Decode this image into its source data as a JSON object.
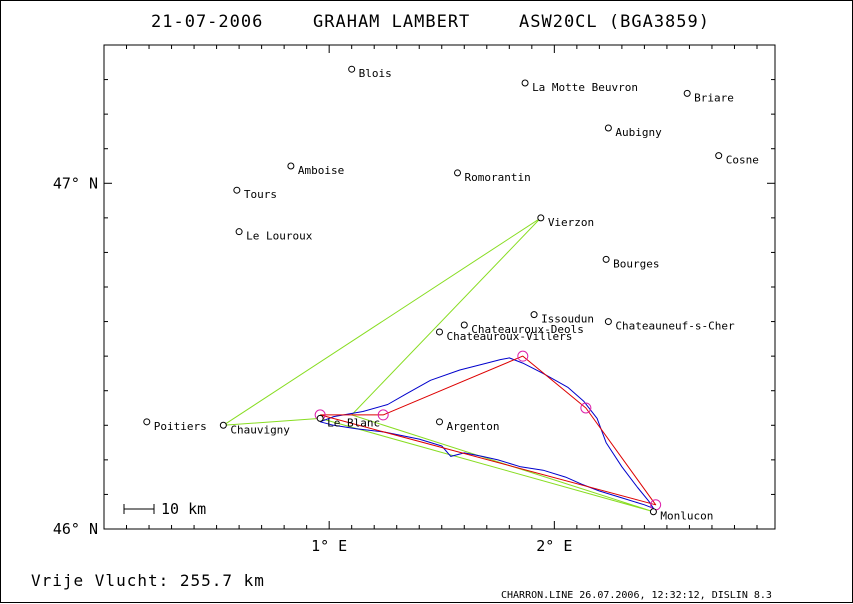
{
  "title": {
    "date": "21-07-2006",
    "pilot": "GRAHAM LAMBERT",
    "glider": "ASW20CL (BGA3859)"
  },
  "axes": {
    "x_ticks": [
      {
        "label": "1° E",
        "value": 1
      },
      {
        "label": "2° E",
        "value": 2
      }
    ],
    "y_ticks": [
      {
        "label": "47° N",
        "value": 47
      },
      {
        "label": "46° N",
        "value": 46
      }
    ],
    "lon_range": [
      0.0,
      2.98
    ],
    "lat_range": [
      46.0,
      47.4
    ]
  },
  "scale_bar": {
    "label": "10 km"
  },
  "towns": [
    {
      "name": "Blois",
      "lon": 1.1,
      "lat": 47.33
    },
    {
      "name": "La Motte Beuvron",
      "lon": 1.87,
      "lat": 47.29
    },
    {
      "name": "Briare",
      "lon": 2.59,
      "lat": 47.26
    },
    {
      "name": "Aubigny",
      "lon": 2.24,
      "lat": 47.16
    },
    {
      "name": "Cosne",
      "lon": 2.73,
      "lat": 47.08
    },
    {
      "name": "Amboise",
      "lon": 0.83,
      "lat": 47.05
    },
    {
      "name": "Romorantin",
      "lon": 1.57,
      "lat": 47.03
    },
    {
      "name": "Tours",
      "lon": 0.59,
      "lat": 46.98
    },
    {
      "name": "Vierzon",
      "lon": 1.94,
      "lat": 46.9
    },
    {
      "name": "Le Louroux",
      "lon": 0.6,
      "lat": 46.86
    },
    {
      "name": "Bourges",
      "lon": 2.23,
      "lat": 46.78
    },
    {
      "name": "Issoudun",
      "lon": 1.91,
      "lat": 46.62
    },
    {
      "name": "Chateauneuf-s-Cher",
      "lon": 2.24,
      "lat": 46.6
    },
    {
      "name": "Chateauroux-Deols",
      "lon": 1.6,
      "lat": 46.59
    },
    {
      "name": "Chateauroux-Villers",
      "lon": 1.49,
      "lat": 46.57
    },
    {
      "name": "Poitiers",
      "lon": 0.19,
      "lat": 46.31
    },
    {
      "name": "Chauvigny",
      "lon": 0.53,
      "lat": 46.3
    },
    {
      "name": "Le Blanc",
      "lon": 0.96,
      "lat": 46.32
    },
    {
      "name": "Argenton",
      "lon": 1.49,
      "lat": 46.31
    },
    {
      "name": "Monlucon",
      "lon": 2.44,
      "lat": 46.05
    }
  ],
  "footer": {
    "distance": "Vrije Vlucht:  255.7 km",
    "credit": "CHARRON.LINE 26.07.2006, 12:32:12, DISLIN 8.3"
  },
  "colors": {
    "task_line": "#88dd22",
    "flight_track": "#0000cc",
    "free_flight": "#dd0000",
    "turnpoints": "#dd22aa"
  },
  "task_route": [
    [
      1.94,
      46.9
    ],
    [
      0.53,
      46.3
    ],
    [
      0.96,
      46.32
    ],
    [
      2.44,
      46.05
    ],
    [
      1.1,
      46.33
    ],
    [
      1.94,
      46.9
    ]
  ],
  "free_flight_route": [
    [
      0.96,
      46.33
    ],
    [
      1.24,
      46.33
    ],
    [
      1.86,
      46.5
    ],
    [
      2.14,
      46.35
    ],
    [
      2.45,
      46.07
    ],
    [
      0.96,
      46.33
    ]
  ],
  "turnpoints": [
    [
      0.96,
      46.33
    ],
    [
      1.24,
      46.33
    ],
    [
      1.86,
      46.5
    ],
    [
      2.14,
      46.35
    ],
    [
      2.45,
      46.07
    ]
  ],
  "flight_track": [
    [
      0.96,
      46.31
    ],
    [
      1.02,
      46.325
    ],
    [
      1.15,
      46.34
    ],
    [
      1.26,
      46.36
    ],
    [
      1.34,
      46.39
    ],
    [
      1.45,
      46.43
    ],
    [
      1.58,
      46.46
    ],
    [
      1.7,
      46.48
    ],
    [
      1.76,
      46.49
    ],
    [
      1.8,
      46.495
    ],
    [
      1.86,
      46.48
    ],
    [
      1.95,
      46.45
    ],
    [
      2.06,
      46.41
    ],
    [
      2.13,
      46.37
    ],
    [
      2.19,
      46.32
    ],
    [
      2.23,
      46.25
    ],
    [
      2.3,
      46.18
    ],
    [
      2.37,
      46.12
    ],
    [
      2.42,
      46.08
    ],
    [
      2.44,
      46.06
    ],
    [
      2.4,
      46.07
    ],
    [
      2.3,
      46.09
    ],
    [
      2.2,
      46.11
    ],
    [
      2.12,
      46.13
    ],
    [
      2.05,
      46.15
    ],
    [
      1.95,
      46.17
    ],
    [
      1.85,
      46.18
    ],
    [
      1.75,
      46.2
    ],
    [
      1.68,
      46.21
    ],
    [
      1.6,
      46.22
    ],
    [
      1.54,
      46.21
    ],
    [
      1.5,
      46.24
    ],
    [
      1.4,
      46.26
    ],
    [
      1.25,
      46.28
    ],
    [
      1.12,
      46.29
    ],
    [
      1.02,
      46.3
    ],
    [
      0.96,
      46.31
    ]
  ]
}
